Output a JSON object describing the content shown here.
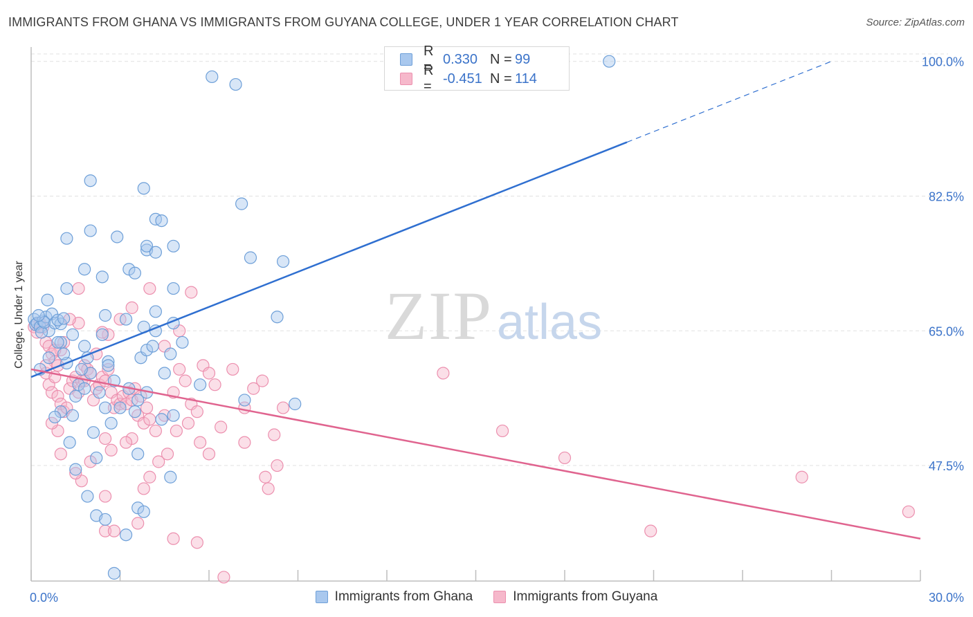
{
  "title": "IMMIGRANTS FROM GHANA VS IMMIGRANTS FROM GUYANA COLLEGE, UNDER 1 YEAR CORRELATION CHART",
  "source": "Source: ZipAtlas.com",
  "watermark": {
    "zip": "ZIP",
    "atlas": "atlas"
  },
  "legend_top": [
    {
      "r_label": "R =",
      "r_value": "0.330",
      "n_label": "N =",
      "n_value": "99"
    },
    {
      "r_label": "R =",
      "r_value": "-0.451",
      "n_label": "N =",
      "n_value": "114"
    }
  ],
  "legend_bottom": [
    "Immigrants from Ghana",
    "Immigrants from Guyana"
  ],
  "colors": {
    "ghana_fill": "#a9c8ee",
    "ghana_stroke": "#6d9fd8",
    "ghana_line": "#2f6fd0",
    "guyana_fill": "#f6b8cb",
    "guyana_stroke": "#ec8fae",
    "guyana_line": "#e0648f",
    "axis_text": "#3b73c9",
    "grid": "#e0e0e0"
  },
  "chart_data": {
    "type": "scatter",
    "xlabel": "",
    "ylabel": "College, Under 1 year",
    "xlim": [
      0,
      30
    ],
    "ylim": [
      32.5,
      101.5
    ],
    "x_tick_labels": [
      "0.0%",
      "30.0%"
    ],
    "y_ticks": [
      47.5,
      65.0,
      82.5,
      100.0
    ],
    "y_tick_labels": [
      "47.5%",
      "65.0%",
      "82.5%",
      "100.0%"
    ],
    "grid": true,
    "legend_position": "bottom",
    "series": [
      {
        "name": "Immigrants from Ghana",
        "trend": {
          "x": [
            0,
            20.1
          ],
          "y": [
            59.0,
            89.5
          ],
          "dashed_to": {
            "x": 27.0,
            "y": 100.0
          }
        },
        "points": [
          [
            0.1,
            66.5
          ],
          [
            0.15,
            65.8
          ],
          [
            0.2,
            66.0
          ],
          [
            0.3,
            65.5
          ],
          [
            0.4,
            66.3
          ],
          [
            0.5,
            66.8
          ],
          [
            0.6,
            65.0
          ],
          [
            0.35,
            64.8
          ],
          [
            0.45,
            66.1
          ],
          [
            0.25,
            67.0
          ],
          [
            0.55,
            69.0
          ],
          [
            0.7,
            67.2
          ],
          [
            0.8,
            66.0
          ],
          [
            1.0,
            65.9
          ],
          [
            0.9,
            66.4
          ],
          [
            1.1,
            66.6
          ],
          [
            1.4,
            64.5
          ],
          [
            1.0,
            63.5
          ],
          [
            1.8,
            63.0
          ],
          [
            0.3,
            60.0
          ],
          [
            1.2,
            60.8
          ],
          [
            1.6,
            58.0
          ],
          [
            1.8,
            57.5
          ],
          [
            1.5,
            56.5
          ],
          [
            2.0,
            59.5
          ],
          [
            1.9,
            61.5
          ],
          [
            2.3,
            57.0
          ],
          [
            2.5,
            55.0
          ],
          [
            1.4,
            54.0
          ],
          [
            1.0,
            54.5
          ],
          [
            0.8,
            53.8
          ],
          [
            1.3,
            50.5
          ],
          [
            2.1,
            51.8
          ],
          [
            2.7,
            53.0
          ],
          [
            3.0,
            55.0
          ],
          [
            3.5,
            54.5
          ],
          [
            3.6,
            56.0
          ],
          [
            3.9,
            57.0
          ],
          [
            3.3,
            57.5
          ],
          [
            3.7,
            61.5
          ],
          [
            2.6,
            61.0
          ],
          [
            2.4,
            64.5
          ],
          [
            2.5,
            67.0
          ],
          [
            3.2,
            66.5
          ],
          [
            3.8,
            65.5
          ],
          [
            3.9,
            62.5
          ],
          [
            4.1,
            63.0
          ],
          [
            4.2,
            65.0
          ],
          [
            4.2,
            67.5
          ],
          [
            4.8,
            66.0
          ],
          [
            4.7,
            62.0
          ],
          [
            5.1,
            63.5
          ],
          [
            4.5,
            59.5
          ],
          [
            5.7,
            58.0
          ],
          [
            4.4,
            53.5
          ],
          [
            3.6,
            49.0
          ],
          [
            2.2,
            48.5
          ],
          [
            1.5,
            47.0
          ],
          [
            4.7,
            46.0
          ],
          [
            1.9,
            43.5
          ],
          [
            2.2,
            41.0
          ],
          [
            2.5,
            40.5
          ],
          [
            3.6,
            42.0
          ],
          [
            3.8,
            41.5
          ],
          [
            3.2,
            38.5
          ],
          [
            2.8,
            33.5
          ],
          [
            1.2,
            70.5
          ],
          [
            1.8,
            73.0
          ],
          [
            2.4,
            72.0
          ],
          [
            3.3,
            73.0
          ],
          [
            3.5,
            72.5
          ],
          [
            1.2,
            77.0
          ],
          [
            2.0,
            78.0
          ],
          [
            2.9,
            77.2
          ],
          [
            3.9,
            75.5
          ],
          [
            3.9,
            76.0
          ],
          [
            4.2,
            75.2
          ],
          [
            4.8,
            76.0
          ],
          [
            4.8,
            70.5
          ],
          [
            4.2,
            79.5
          ],
          [
            4.4,
            79.3
          ],
          [
            3.8,
            83.5
          ],
          [
            2.0,
            84.5
          ],
          [
            7.1,
            81.5
          ],
          [
            7.4,
            74.5
          ],
          [
            8.5,
            74.0
          ],
          [
            8.3,
            66.8
          ],
          [
            7.2,
            56.0
          ],
          [
            8.9,
            55.5
          ],
          [
            6.1,
            98.0
          ],
          [
            6.9,
            97.0
          ],
          [
            19.5,
            100.0
          ],
          [
            0.6,
            61.5
          ],
          [
            1.1,
            62.0
          ],
          [
            2.8,
            58.5
          ],
          [
            4.8,
            54.0
          ],
          [
            0.9,
            63.5
          ],
          [
            1.7,
            60.0
          ],
          [
            2.6,
            60.5
          ]
        ]
      },
      {
        "name": "Immigrants from Guyana",
        "trend": {
          "x": [
            0,
            30
          ],
          "y": [
            60.0,
            38.0
          ]
        },
        "points": [
          [
            0.1,
            65.5
          ],
          [
            0.2,
            64.8
          ],
          [
            0.3,
            66.0
          ],
          [
            0.4,
            65.5
          ],
          [
            0.5,
            63.5
          ],
          [
            0.6,
            63.0
          ],
          [
            0.7,
            62.0
          ],
          [
            0.8,
            61.0
          ],
          [
            0.9,
            60.5
          ],
          [
            1.0,
            62.5
          ],
          [
            1.1,
            63.5
          ],
          [
            0.5,
            59.5
          ],
          [
            0.6,
            58.0
          ],
          [
            0.7,
            57.0
          ],
          [
            0.8,
            59.0
          ],
          [
            0.9,
            56.5
          ],
          [
            1.0,
            55.5
          ],
          [
            1.1,
            54.5
          ],
          [
            1.2,
            55.0
          ],
          [
            1.3,
            57.5
          ],
          [
            1.4,
            58.5
          ],
          [
            1.5,
            59.0
          ],
          [
            1.6,
            57.0
          ],
          [
            1.7,
            58.5
          ],
          [
            1.8,
            60.5
          ],
          [
            1.9,
            60.0
          ],
          [
            2.0,
            59.5
          ],
          [
            2.1,
            56.0
          ],
          [
            2.2,
            57.5
          ],
          [
            2.3,
            58.0
          ],
          [
            2.4,
            59.0
          ],
          [
            2.5,
            58.5
          ],
          [
            2.6,
            60.0
          ],
          [
            2.7,
            57.0
          ],
          [
            2.8,
            55.0
          ],
          [
            2.9,
            56.0
          ],
          [
            3.0,
            55.5
          ],
          [
            3.1,
            56.5
          ],
          [
            3.2,
            55.5
          ],
          [
            3.3,
            57.0
          ],
          [
            3.4,
            56.0
          ],
          [
            3.5,
            57.5
          ],
          [
            3.6,
            54.0
          ],
          [
            3.7,
            56.5
          ],
          [
            3.8,
            53.0
          ],
          [
            3.9,
            55.0
          ],
          [
            4.0,
            53.5
          ],
          [
            4.2,
            52.0
          ],
          [
            4.5,
            54.0
          ],
          [
            4.8,
            57.0
          ],
          [
            5.0,
            60.0
          ],
          [
            5.2,
            58.5
          ],
          [
            5.4,
            55.5
          ],
          [
            5.6,
            54.5
          ],
          [
            5.8,
            60.5
          ],
          [
            6.0,
            59.5
          ],
          [
            6.2,
            58.0
          ],
          [
            6.4,
            52.5
          ],
          [
            6.8,
            60.0
          ],
          [
            7.2,
            55.0
          ],
          [
            7.5,
            57.5
          ],
          [
            7.8,
            58.5
          ],
          [
            8.2,
            51.5
          ],
          [
            8.5,
            55.0
          ],
          [
            8.3,
            47.5
          ],
          [
            8.0,
            44.5
          ],
          [
            7.9,
            46.0
          ],
          [
            7.2,
            50.5
          ],
          [
            6.0,
            49.0
          ],
          [
            5.7,
            50.5
          ],
          [
            5.3,
            53.0
          ],
          [
            4.9,
            52.0
          ],
          [
            4.6,
            49.0
          ],
          [
            4.3,
            48.0
          ],
          [
            4.0,
            46.0
          ],
          [
            3.4,
            51.0
          ],
          [
            3.2,
            50.5
          ],
          [
            2.7,
            49.5
          ],
          [
            2.5,
            51.0
          ],
          [
            2.0,
            48.0
          ],
          [
            1.7,
            45.5
          ],
          [
            1.5,
            46.5
          ],
          [
            1.0,
            49.0
          ],
          [
            0.9,
            52.0
          ],
          [
            0.7,
            53.0
          ],
          [
            2.5,
            43.5
          ],
          [
            2.5,
            39.0
          ],
          [
            2.8,
            39.0
          ],
          [
            3.6,
            40.0
          ],
          [
            4.8,
            38.0
          ],
          [
            5.6,
            37.5
          ],
          [
            6.5,
            33.0
          ],
          [
            3.8,
            44.5
          ],
          [
            15.9,
            52.0
          ],
          [
            18.0,
            48.5
          ],
          [
            26.0,
            46.0
          ],
          [
            29.6,
            41.5
          ],
          [
            20.9,
            39.0
          ],
          [
            13.9,
            59.5
          ],
          [
            1.6,
            66.0
          ],
          [
            2.6,
            64.5
          ],
          [
            3.4,
            68.0
          ],
          [
            4.0,
            70.5
          ],
          [
            5.4,
            70.0
          ],
          [
            1.6,
            70.5
          ],
          [
            2.4,
            64.8
          ],
          [
            3.0,
            66.5
          ],
          [
            4.5,
            63.0
          ],
          [
            5.0,
            65.0
          ],
          [
            1.3,
            66.5
          ],
          [
            0.5,
            60.5
          ],
          [
            0.8,
            62.5
          ],
          [
            2.2,
            62.0
          ],
          [
            1.8,
            58.5
          ]
        ]
      }
    ]
  }
}
